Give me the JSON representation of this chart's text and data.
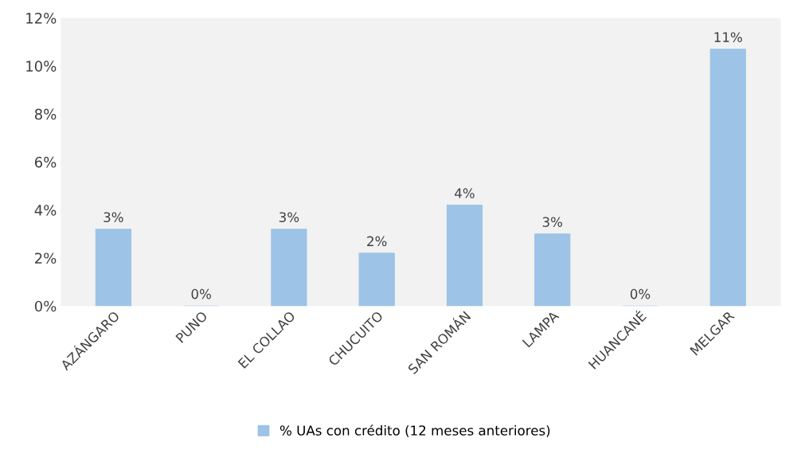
{
  "chart_data": {
    "type": "bar",
    "categories": [
      "AZÁNGARO",
      "PUNO",
      "EL COLLAO",
      "CHUCUITO",
      "SAN ROMÁN",
      "LAMPA",
      "HUANCANÉ",
      "MELGAR"
    ],
    "series": [
      {
        "name": "% UAs con crédito (12 meses anteriores)",
        "color": "#9dc3e6",
        "values": [
          3.2,
          0,
          3.2,
          2.2,
          4.2,
          3.0,
          0,
          10.7
        ],
        "value_labels": [
          "3%",
          "0%",
          "3%",
          "2%",
          "4%",
          "3%",
          "0%",
          "11%"
        ]
      }
    ],
    "ylim": [
      0,
      12
    ],
    "yticks": [
      {
        "value": 0,
        "label": "0%"
      },
      {
        "value": 2,
        "label": "2%"
      },
      {
        "value": 4,
        "label": "4%"
      },
      {
        "value": 6,
        "label": "6%"
      },
      {
        "value": 8,
        "label": "8%"
      },
      {
        "value": 10,
        "label": "10%"
      },
      {
        "value": 12,
        "label": "12%"
      }
    ],
    "legend": "bottom"
  }
}
